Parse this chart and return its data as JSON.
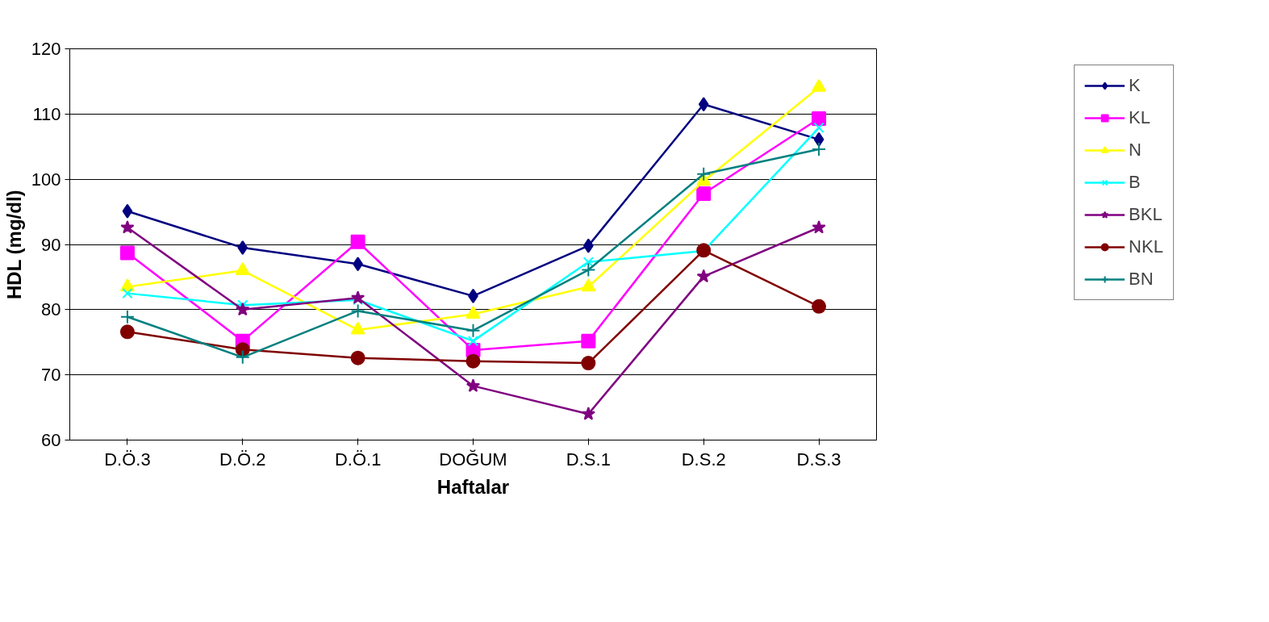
{
  "chart_data": {
    "type": "line",
    "xlabel": "Haftalar",
    "ylabel": "HDL (mg/dl)",
    "categories": [
      "D.Ö.3",
      "D.Ö.2",
      "D.Ö.1",
      "DOĞUM",
      "D.S.1",
      "D.S.2",
      "D.S.3"
    ],
    "ylim": [
      60,
      120
    ],
    "yticks": [
      60,
      70,
      80,
      90,
      100,
      110,
      120
    ],
    "grid": "y",
    "legend": "right",
    "line_style": "solid",
    "series": [
      {
        "name": "K",
        "color": "#000080",
        "marker": "diamond",
        "values": [
          95.1,
          89.5,
          87.0,
          82.1,
          89.8,
          111.5,
          106.1
        ]
      },
      {
        "name": "KL",
        "color": "#ff00ff",
        "marker": "square",
        "values": [
          88.7,
          75.2,
          90.4,
          73.8,
          75.2,
          97.8,
          109.3
        ]
      },
      {
        "name": "N",
        "color": "#ffff00",
        "marker": "triangle",
        "values": [
          83.5,
          86.0,
          76.9,
          79.3,
          83.5,
          99.7,
          114.1
        ]
      },
      {
        "name": "B",
        "color": "#00ffff",
        "marker": "x",
        "values": [
          82.5,
          80.7,
          81.5,
          75.2,
          87.3,
          89.0,
          107.9
        ]
      },
      {
        "name": "BKL",
        "color": "#800080",
        "marker": "star",
        "values": [
          92.6,
          80.0,
          81.8,
          68.3,
          64.0,
          85.1,
          92.6
        ]
      },
      {
        "name": "NKL",
        "color": "#800000",
        "marker": "circle",
        "values": [
          76.6,
          73.9,
          72.6,
          72.1,
          71.8,
          89.1,
          80.5
        ]
      },
      {
        "name": "BN",
        "color": "#008080",
        "marker": "cross",
        "values": [
          78.9,
          72.7,
          79.8,
          76.8,
          86.1,
          100.8,
          104.6
        ]
      }
    ]
  }
}
